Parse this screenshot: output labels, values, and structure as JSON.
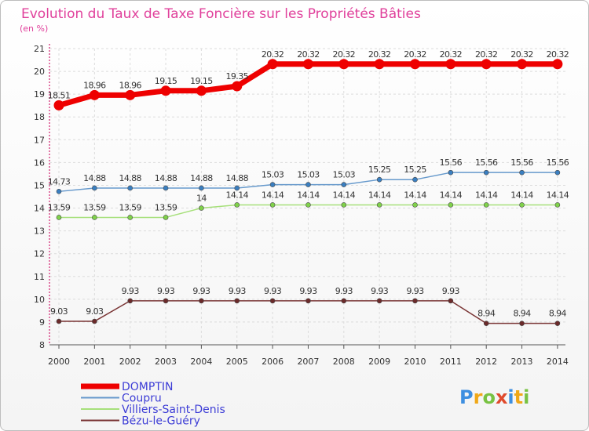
{
  "chart_data": {
    "type": "line",
    "title": "Evolution du Taux de Taxe Foncière sur les Propriétés Bâties",
    "ylabel": "(en %)",
    "xlabel": "",
    "ylim": [
      8,
      21
    ],
    "yticks": [
      8,
      9,
      10,
      11,
      12,
      13,
      14,
      15,
      16,
      17,
      18,
      19,
      20,
      21
    ],
    "x": [
      "2000",
      "2001",
      "2002",
      "2003",
      "2004",
      "2005",
      "2006",
      "2007",
      "2008",
      "2009",
      "2010",
      "2011",
      "2012",
      "2013",
      "2014"
    ],
    "grid": true,
    "legend_position": "bottom-left",
    "series": [
      {
        "name": "DOMPTIN",
        "color": "#ee0000",
        "emphasis": true,
        "values": [
          18.51,
          18.96,
          18.96,
          19.15,
          19.15,
          19.35,
          20.32,
          20.32,
          20.32,
          20.32,
          20.32,
          20.32,
          20.32,
          20.32,
          20.32
        ],
        "labels": [
          "18.51",
          "18.96",
          "18.96",
          "19.15",
          "19.15",
          "19.35",
          "20.32",
          "20.32",
          "20.32",
          "20.32",
          "20.32",
          "20.32",
          "20.32",
          "20.32",
          "20.32"
        ]
      },
      {
        "name": "Coupru",
        "color": "#6699cc",
        "marker_color": "#3a7fc1",
        "values": [
          14.73,
          14.88,
          14.88,
          14.88,
          14.88,
          14.88,
          15.03,
          15.03,
          15.03,
          15.25,
          15.25,
          15.56,
          15.56,
          15.56,
          15.56
        ],
        "labels": [
          "14.73",
          "14.88",
          "14.88",
          "14.88",
          "14.88",
          "14.88",
          "15.03",
          "15.03",
          "15.03",
          "15.25",
          "15.25",
          "15.56",
          "15.56",
          "15.56",
          "15.56"
        ]
      },
      {
        "name": "Villiers-Saint-Denis",
        "color": "#a6e07a",
        "marker_color": "#7fd14a",
        "values": [
          13.59,
          13.59,
          13.59,
          13.59,
          14,
          14.14,
          14.14,
          14.14,
          14.14,
          14.14,
          14.14,
          14.14,
          14.14,
          14.14,
          14.14
        ],
        "labels": [
          "13.59",
          "13.59",
          "13.59",
          "13.59",
          "14",
          "14.14",
          "14.14",
          "14.14",
          "14.14",
          "14.14",
          "14.14",
          "14.14",
          "14.14",
          "14.14",
          "14.14"
        ]
      },
      {
        "name": "Bézu-le-Guéry",
        "color": "#7a3535",
        "marker_color": "#6b2a2a",
        "values": [
          9.03,
          9.03,
          9.93,
          9.93,
          9.93,
          9.93,
          9.93,
          9.93,
          9.93,
          9.93,
          9.93,
          9.93,
          8.94,
          8.94,
          8.94
        ],
        "labels": [
          "9.03",
          "9.03",
          "9.93",
          "9.93",
          "9.93",
          "9.93",
          "9.93",
          "9.93",
          "9.93",
          "9.93",
          "9.93",
          "9.93",
          "8.94",
          "8.94",
          "8.94"
        ]
      }
    ]
  },
  "brand": {
    "letters": [
      "P",
      "r",
      "o",
      "x",
      "i",
      "t",
      "i"
    ],
    "colors": [
      "#3e8fe0",
      "#f0a818",
      "#78c242",
      "#e04a2c",
      "#3e8fe0",
      "#f0a818",
      "#78c242"
    ]
  }
}
